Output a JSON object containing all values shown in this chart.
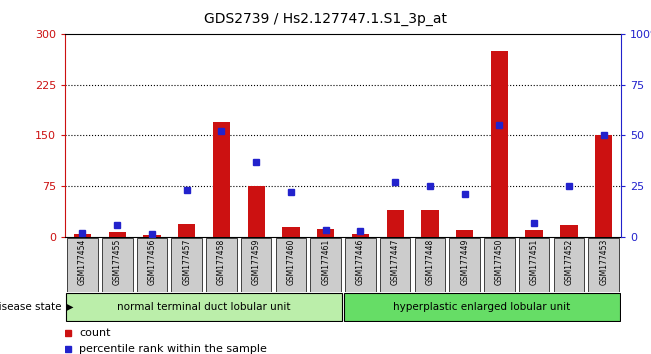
{
  "title": "GDS2739 / Hs2.127747.1.S1_3p_at",
  "samples": [
    "GSM177454",
    "GSM177455",
    "GSM177456",
    "GSM177457",
    "GSM177458",
    "GSM177459",
    "GSM177460",
    "GSM177461",
    "GSM177446",
    "GSM177447",
    "GSM177448",
    "GSM177449",
    "GSM177450",
    "GSM177451",
    "GSM177452",
    "GSM177453"
  ],
  "counts": [
    5,
    8,
    3,
    20,
    170,
    75,
    15,
    12,
    5,
    40,
    40,
    10,
    275,
    10,
    18,
    150
  ],
  "percentiles": [
    2,
    6,
    1.5,
    23,
    52,
    37,
    22,
    3.5,
    3,
    27,
    25,
    21,
    55,
    7,
    25,
    50
  ],
  "group1_label": "normal terminal duct lobular unit",
  "group2_label": "hyperplastic enlarged lobular unit",
  "group1_count": 8,
  "group2_count": 8,
  "ylim_left": [
    0,
    300
  ],
  "ylim_right": [
    0,
    100
  ],
  "yticks_left": [
    0,
    75,
    150,
    225,
    300
  ],
  "yticks_right": [
    0,
    25,
    50,
    75,
    100
  ],
  "bar_color": "#cc1111",
  "dot_color": "#2222cc",
  "group1_bg": "#bbeeaa",
  "group2_bg": "#66dd66",
  "grid_color": "#000000",
  "title_color": "#000000",
  "left_axis_color": "#cc1111",
  "right_axis_color": "#2222cc",
  "sample_bg": "#cccccc",
  "legend_count_color": "#cc1111",
  "legend_pct_color": "#2222cc",
  "bar_width": 0.5
}
